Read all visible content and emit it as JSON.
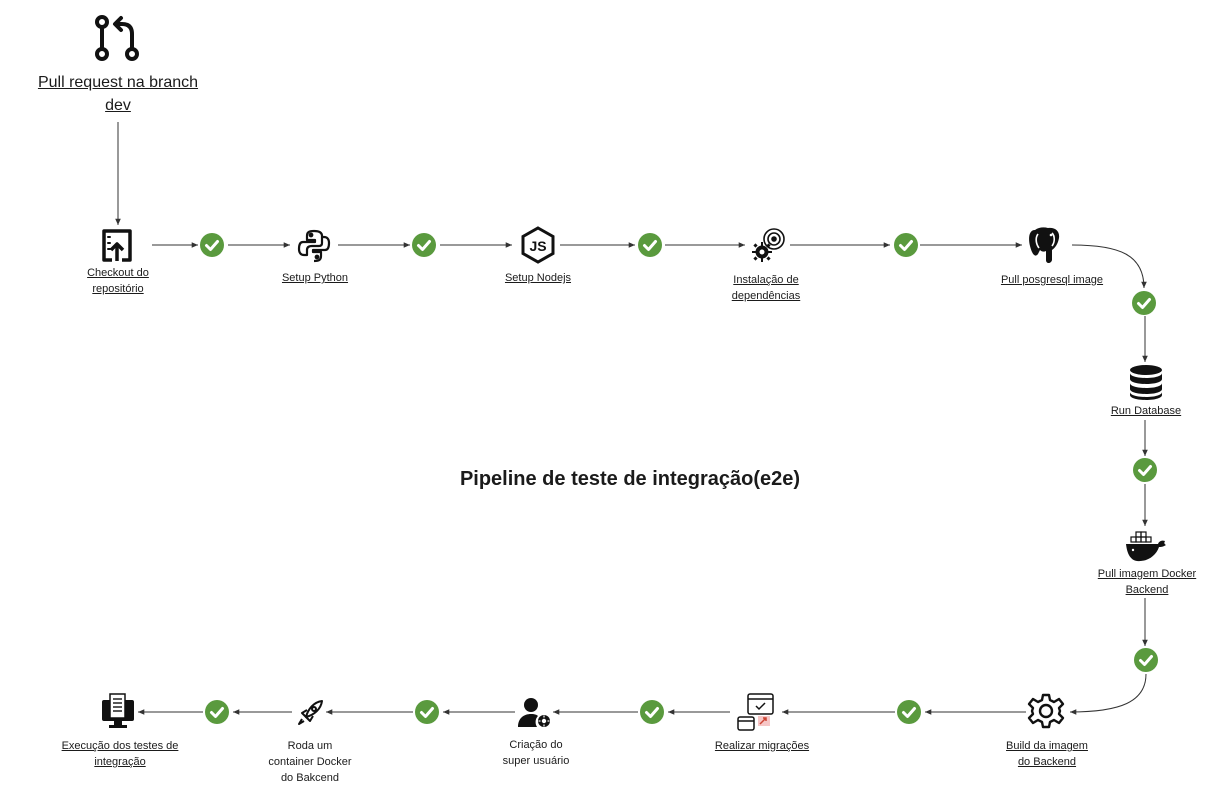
{
  "title": "Pipeline de teste de integração(e2e)",
  "colors": {
    "check": "#5a9a3e",
    "line": "#333333",
    "text": "#1b1b1b"
  },
  "steps": {
    "pull_request": {
      "label": "Pull request na branch \ndev",
      "icon": "git-pull-request-icon"
    },
    "checkout": {
      "label": "Checkout do\nrepositório",
      "icon": "checkout-upload-icon"
    },
    "setup_python": {
      "label": "Setup Python",
      "icon": "python-icon"
    },
    "setup_node": {
      "label": "Setup Nodejs",
      "icon": "nodejs-icon"
    },
    "install_deps": {
      "label": "Instalação de \ndependências",
      "icon": "gears-icon"
    },
    "pull_postgres": {
      "label": "Pull posgresql image",
      "icon": "postgresql-elephant-icon"
    },
    "run_db": {
      "label": "Run Database",
      "icon": "database-icon"
    },
    "pull_docker": {
      "label": "Pull imagem Docker \nBackend",
      "icon": "docker-whale-icon"
    },
    "build": {
      "label": "Build da imagem \ndo Backend",
      "icon": "gear-icon"
    },
    "migrations": {
      "label": "Realizar migrações",
      "icon": "migration-windows-icon"
    },
    "superuser": {
      "label": "Criação do \nsuper usuário",
      "icon": "user-gear-icon"
    },
    "run_container": {
      "label": "Roda um \ncontainer Docker \ndo Bakcend",
      "icon": "rocket-icon"
    },
    "tests": {
      "label": "Execução dos testes de \nintegração",
      "icon": "monitor-checklist-icon"
    }
  }
}
